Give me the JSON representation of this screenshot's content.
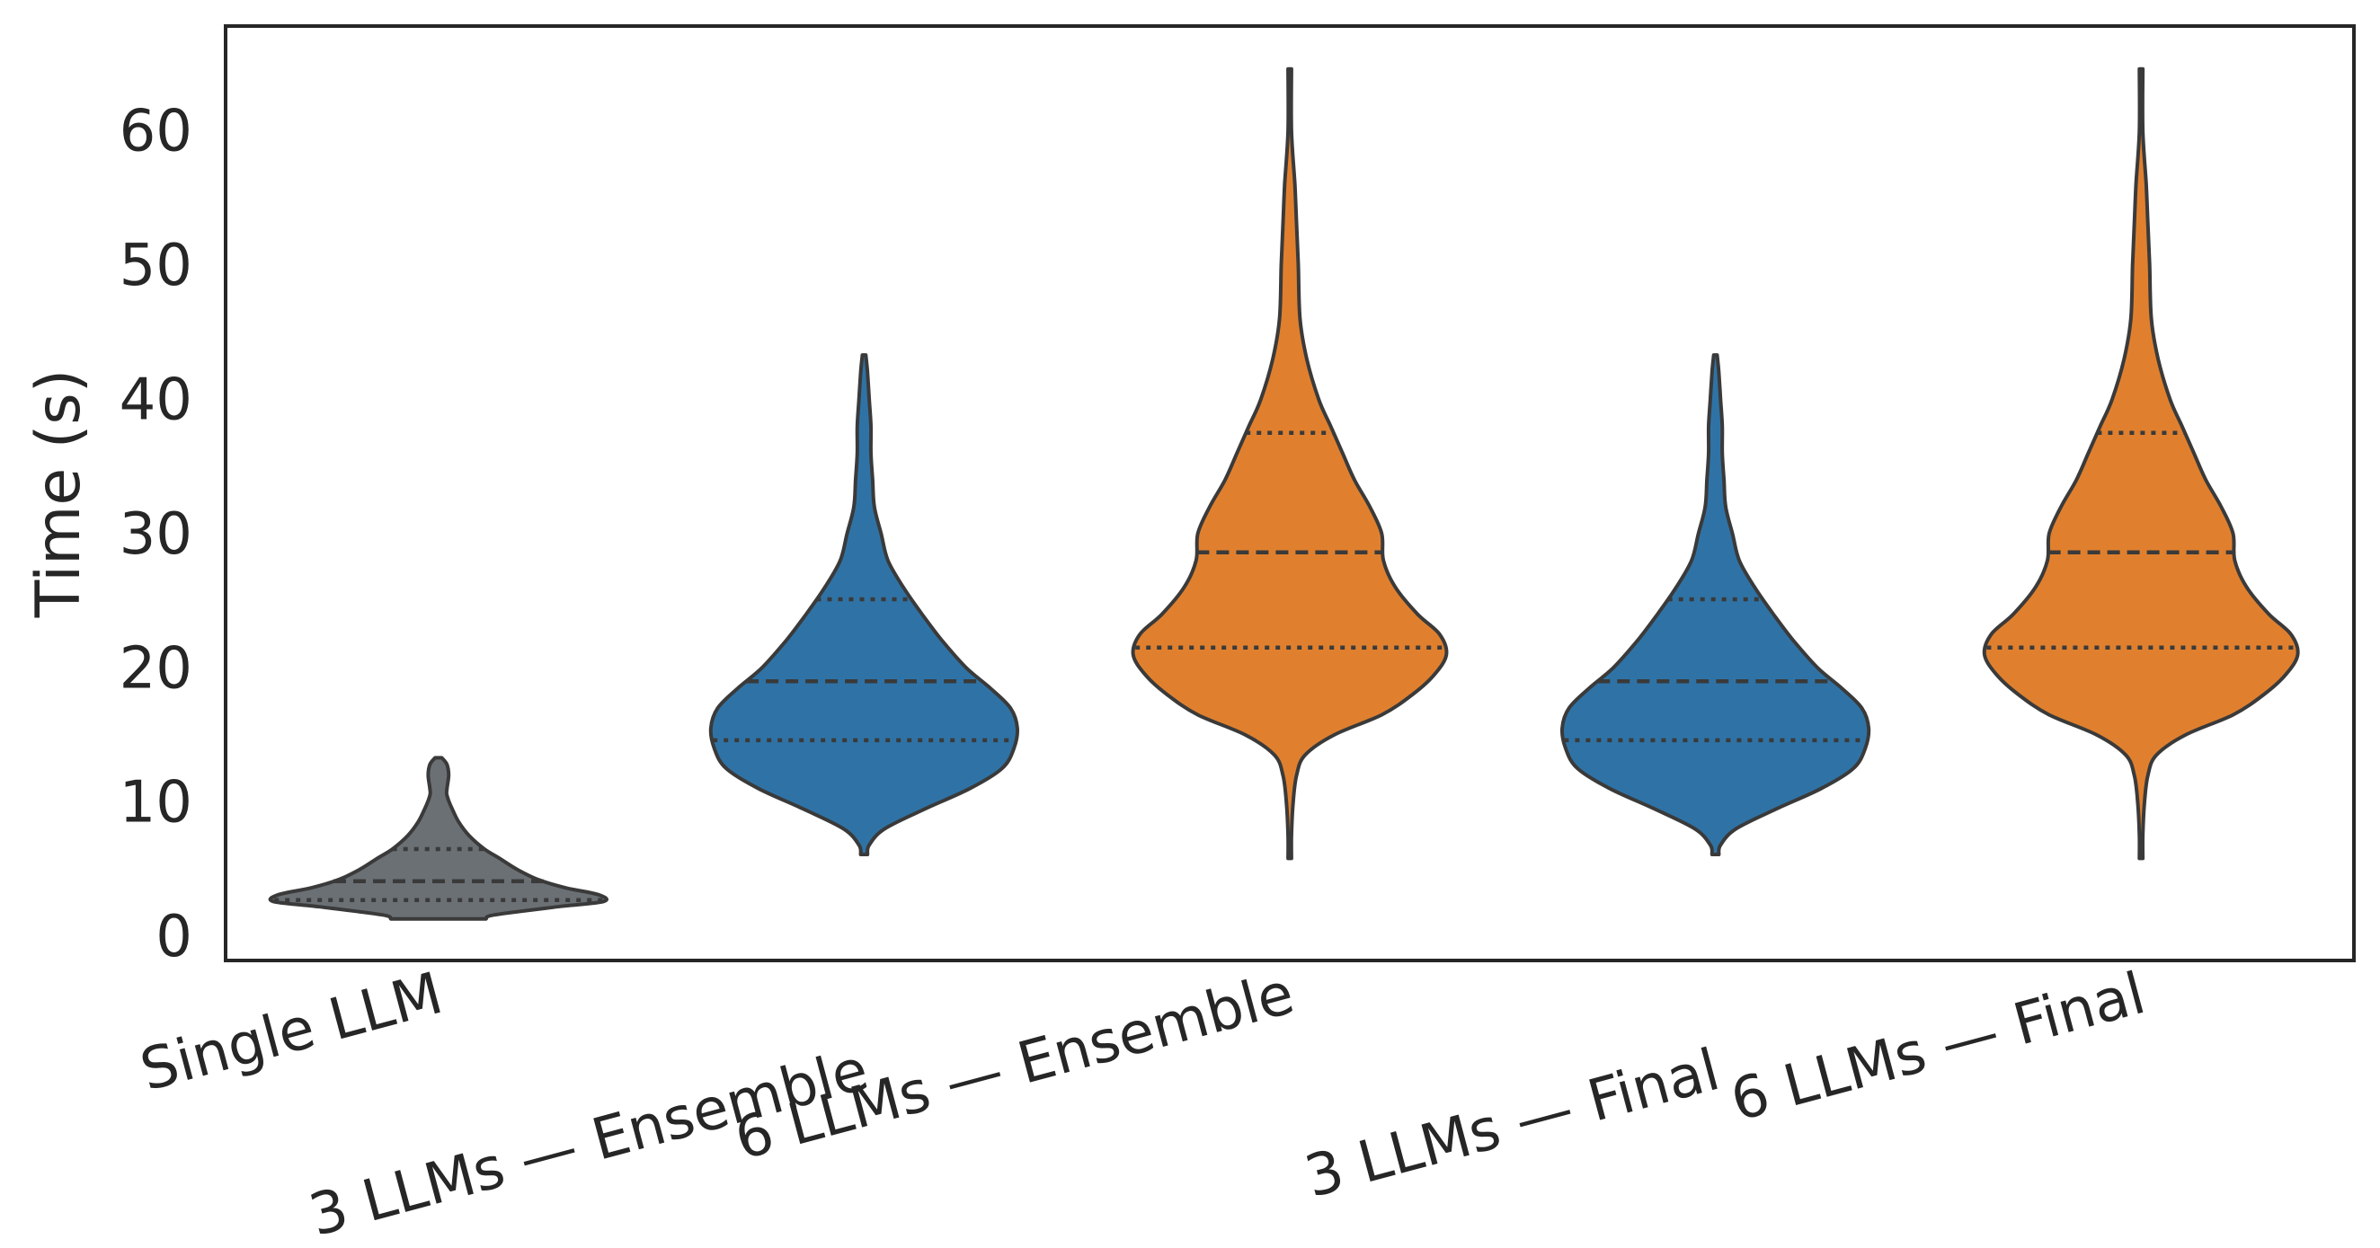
{
  "chart_data": {
    "type": "violin",
    "ylabel": "Time (s)",
    "xlabel": "",
    "ylim": [
      -1.8,
      67.8
    ],
    "yticks": [
      0,
      10,
      20,
      30,
      40,
      50,
      60
    ],
    "grid": false,
    "categories": [
      "Single LLM",
      "3 LLMs — Ensemble",
      "6 LLMs — Ensemble",
      "3 LLMs — Final",
      "6 LLMs — Final"
    ],
    "colors": [
      "#6b7075",
      "#2f73a6",
      "#e0802e",
      "#2f73a6",
      "#e0802e"
    ],
    "series": [
      {
        "min": 1.3,
        "max": 13.3,
        "q1": 2.7,
        "median": 4.1,
        "q3": 6.5,
        "density": [
          [
            1.3,
            0.28
          ],
          [
            1.6,
            0.33
          ],
          [
            2.2,
            0.7
          ],
          [
            2.6,
            0.97
          ],
          [
            3.1,
            0.94
          ],
          [
            3.6,
            0.75
          ],
          [
            4.2,
            0.59
          ],
          [
            5.0,
            0.46
          ],
          [
            5.8,
            0.36
          ],
          [
            6.5,
            0.27
          ],
          [
            7.5,
            0.18
          ],
          [
            8.5,
            0.12
          ],
          [
            9.5,
            0.08
          ],
          [
            10.5,
            0.05
          ],
          [
            11.0,
            0.05
          ],
          [
            12.0,
            0.06
          ],
          [
            12.8,
            0.05
          ],
          [
            13.3,
            0.02
          ]
        ]
      },
      {
        "min": 6.1,
        "max": 43.3,
        "q1": 14.6,
        "median": 19.0,
        "q3": 25.1,
        "density": [
          [
            6.1,
            0.02
          ],
          [
            6.8,
            0.03
          ],
          [
            8.0,
            0.12
          ],
          [
            9.5,
            0.36
          ],
          [
            11.0,
            0.62
          ],
          [
            12.5,
            0.81
          ],
          [
            14.0,
            0.88
          ],
          [
            15.5,
            0.9
          ],
          [
            17.0,
            0.86
          ],
          [
            18.5,
            0.74
          ],
          [
            20.0,
            0.6
          ],
          [
            22.0,
            0.46
          ],
          [
            24.0,
            0.34
          ],
          [
            26.0,
            0.23
          ],
          [
            28.0,
            0.14
          ],
          [
            30.0,
            0.1
          ],
          [
            32.0,
            0.06
          ],
          [
            34.0,
            0.05
          ],
          [
            36.0,
            0.04
          ],
          [
            38.0,
            0.04
          ],
          [
            40.0,
            0.03
          ],
          [
            42.0,
            0.02
          ],
          [
            43.3,
            0.01
          ]
        ]
      },
      {
        "min": 5.8,
        "max": 64.6,
        "q1": 21.5,
        "median": 28.6,
        "q3": 37.5,
        "density": [
          [
            5.8,
            0.01
          ],
          [
            7.5,
            0.01
          ],
          [
            10.0,
            0.02
          ],
          [
            12.0,
            0.04
          ],
          [
            13.5,
            0.09
          ],
          [
            15.0,
            0.26
          ],
          [
            16.5,
            0.54
          ],
          [
            18.0,
            0.72
          ],
          [
            19.5,
            0.85
          ],
          [
            21.0,
            0.92
          ],
          [
            22.5,
            0.88
          ],
          [
            24.0,
            0.75
          ],
          [
            26.0,
            0.62
          ],
          [
            28.0,
            0.55
          ],
          [
            30.0,
            0.54
          ],
          [
            32.0,
            0.47
          ],
          [
            34.0,
            0.38
          ],
          [
            36.0,
            0.31
          ],
          [
            38.0,
            0.24
          ],
          [
            40.0,
            0.17
          ],
          [
            43.0,
            0.1
          ],
          [
            46.0,
            0.06
          ],
          [
            50.0,
            0.05
          ],
          [
            53.0,
            0.04
          ],
          [
            56.0,
            0.03
          ],
          [
            60.0,
            0.01
          ],
          [
            64.6,
            0.01
          ]
        ]
      },
      {
        "min": 6.1,
        "max": 43.3,
        "q1": 14.6,
        "median": 19.0,
        "q3": 25.1,
        "density": [
          [
            6.1,
            0.02
          ],
          [
            6.8,
            0.03
          ],
          [
            8.0,
            0.12
          ],
          [
            9.5,
            0.36
          ],
          [
            11.0,
            0.62
          ],
          [
            12.5,
            0.81
          ],
          [
            14.0,
            0.88
          ],
          [
            15.5,
            0.9
          ],
          [
            17.0,
            0.86
          ],
          [
            18.5,
            0.74
          ],
          [
            20.0,
            0.6
          ],
          [
            22.0,
            0.46
          ],
          [
            24.0,
            0.34
          ],
          [
            26.0,
            0.23
          ],
          [
            28.0,
            0.14
          ],
          [
            30.0,
            0.1
          ],
          [
            32.0,
            0.06
          ],
          [
            34.0,
            0.05
          ],
          [
            36.0,
            0.04
          ],
          [
            38.0,
            0.04
          ],
          [
            40.0,
            0.03
          ],
          [
            42.0,
            0.02
          ],
          [
            43.3,
            0.01
          ]
        ]
      },
      {
        "min": 5.8,
        "max": 64.6,
        "q1": 21.5,
        "median": 28.6,
        "q3": 37.5,
        "density": [
          [
            5.8,
            0.01
          ],
          [
            7.5,
            0.01
          ],
          [
            10.0,
            0.02
          ],
          [
            12.0,
            0.04
          ],
          [
            13.5,
            0.09
          ],
          [
            15.0,
            0.26
          ],
          [
            16.5,
            0.54
          ],
          [
            18.0,
            0.72
          ],
          [
            19.5,
            0.85
          ],
          [
            21.0,
            0.92
          ],
          [
            22.5,
            0.88
          ],
          [
            24.0,
            0.75
          ],
          [
            26.0,
            0.62
          ],
          [
            28.0,
            0.55
          ],
          [
            30.0,
            0.54
          ],
          [
            32.0,
            0.47
          ],
          [
            34.0,
            0.38
          ],
          [
            36.0,
            0.31
          ],
          [
            38.0,
            0.24
          ],
          [
            40.0,
            0.17
          ],
          [
            43.0,
            0.1
          ],
          [
            46.0,
            0.06
          ],
          [
            50.0,
            0.05
          ],
          [
            53.0,
            0.04
          ],
          [
            56.0,
            0.03
          ],
          [
            60.0,
            0.01
          ],
          [
            64.6,
            0.01
          ]
        ]
      }
    ]
  }
}
